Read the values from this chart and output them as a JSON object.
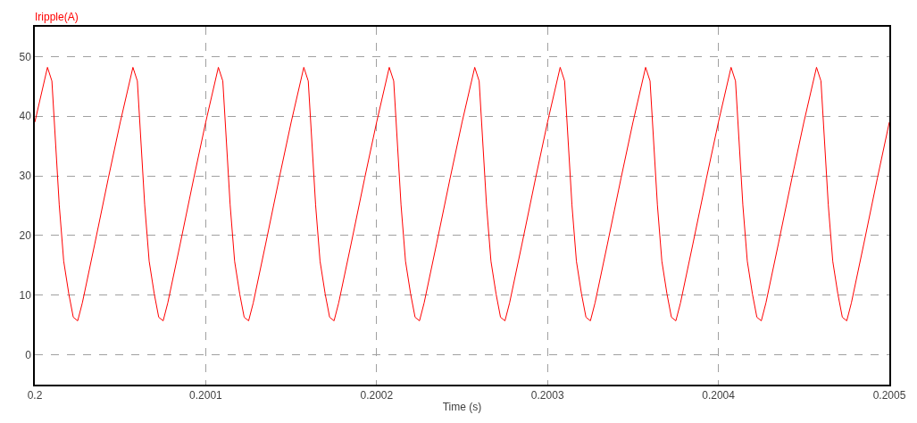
{
  "chart_data": {
    "type": "line",
    "xlabel": "Time (s)",
    "x": [
      0.2,
      0.2000074,
      0.20001,
      0.2000143,
      0.2000169,
      0.2000199,
      0.2000225,
      0.2000251,
      0.2000278,
      0.200035,
      0.200043,
      0.20005,
      0.2000574,
      0.20006,
      0.2000643,
      0.2000669,
      0.2000699,
      0.2000725,
      0.2000751,
      0.2000778,
      0.200085,
      0.200093,
      0.2001,
      0.2001074,
      0.20011,
      0.2001143,
      0.2001169,
      0.2001199,
      0.2001225,
      0.2001251,
      0.2001278,
      0.200135,
      0.200143,
      0.20015,
      0.2001574,
      0.20016,
      0.2001643,
      0.2001669,
      0.2001699,
      0.2001725,
      0.2001751,
      0.2001778,
      0.200185,
      0.200193,
      0.2002,
      0.2002074,
      0.20021,
      0.2002143,
      0.2002169,
      0.2002199,
      0.2002225,
      0.2002251,
      0.2002278,
      0.200235,
      0.200243,
      0.20025,
      0.2002574,
      0.20026,
      0.2002643,
      0.2002669,
      0.2002699,
      0.2002725,
      0.2002751,
      0.2002778,
      0.200285,
      0.200293,
      0.2003,
      0.2003074,
      0.20031,
      0.2003143,
      0.2003169,
      0.2003199,
      0.2003225,
      0.2003251,
      0.2003278,
      0.200335,
      0.200343,
      0.20035,
      0.2003574,
      0.20036,
      0.2003643,
      0.2003669,
      0.2003699,
      0.2003725,
      0.2003751,
      0.2003778,
      0.200385,
      0.200393,
      0.2004,
      0.2004074,
      0.20041,
      0.2004143,
      0.2004169,
      0.2004199,
      0.2004225,
      0.2004251,
      0.2004278,
      0.200435,
      0.200443,
      0.20045,
      0.2004574,
      0.20046,
      0.2004643,
      0.2004669,
      0.2004699,
      0.2004725,
      0.2004751,
      0.2004778,
      0.200485,
      0.200493,
      0.2005
    ],
    "series": [
      {
        "name": "Iripple(A)",
        "color": "#ff0000",
        "values": [
          39,
          48.2,
          45.9,
          25.1,
          15.7,
          10.2,
          6.3,
          5.7,
          8.7,
          18.5,
          29.6,
          39,
          48.2,
          45.9,
          25.1,
          15.7,
          10.2,
          6.3,
          5.7,
          8.7,
          18.5,
          29.6,
          39,
          48.2,
          45.9,
          25.1,
          15.7,
          10.2,
          6.3,
          5.7,
          8.7,
          18.5,
          29.6,
          39,
          48.2,
          45.9,
          25.1,
          15.7,
          10.2,
          6.3,
          5.7,
          8.7,
          18.5,
          29.6,
          39,
          48.2,
          45.9,
          25.1,
          15.7,
          10.2,
          6.3,
          5.7,
          8.7,
          18.5,
          29.6,
          39,
          48.2,
          45.9,
          25.1,
          15.7,
          10.2,
          6.3,
          5.7,
          8.7,
          18.5,
          29.6,
          39,
          48.2,
          45.9,
          25.1,
          15.7,
          10.2,
          6.3,
          5.7,
          8.7,
          18.5,
          29.6,
          39,
          48.2,
          45.9,
          25.1,
          15.7,
          10.2,
          6.3,
          5.7,
          8.7,
          18.5,
          29.6,
          39,
          48.2,
          45.9,
          25.1,
          15.7,
          10.2,
          6.3,
          5.7,
          8.7,
          18.5,
          29.6,
          39,
          48.2,
          45.9,
          25.1,
          15.7,
          10.2,
          6.3,
          5.7,
          8.7,
          18.5,
          29.6,
          39
        ]
      }
    ],
    "xlim": [
      0.2,
      0.2005
    ],
    "xticks": [
      0.2,
      0.2001,
      0.2002,
      0.2003,
      0.2004,
      0.2005
    ],
    "ylim": [
      -5,
      55
    ],
    "yticks": [
      0,
      10,
      20,
      30,
      40,
      50
    ],
    "grid": true,
    "marker": "none",
    "line_style": "solid",
    "legend": "top left"
  }
}
